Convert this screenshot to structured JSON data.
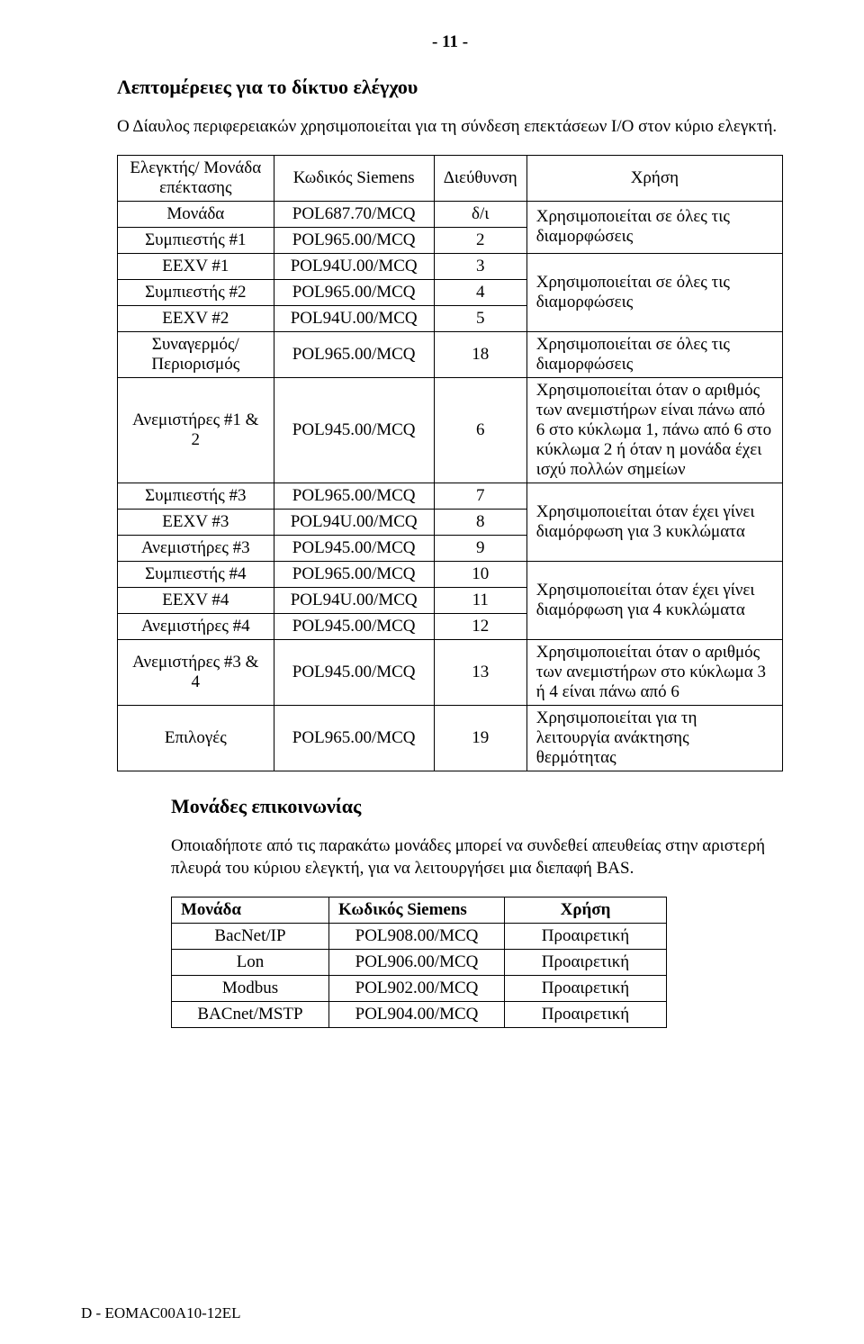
{
  "pageNumber": "- 11 -",
  "section1": {
    "title": "Λεπτομέρειες για το δίκτυο ελέγχου",
    "intro": "Ο Δίαυλος περιφερειακών χρησιμοποιείται για τη σύνδεση επεκτάσεων I/O στον κύριο ελεγκτή."
  },
  "table1": {
    "headers": {
      "c1": "Ελεγκτής/ Μονάδα επέκτασης",
      "c2": "Κωδικός Siemens",
      "c3": "Διεύθυνση",
      "c4": "Χρήση"
    },
    "r1": {
      "a": "Μονάδα",
      "b": "POL687.70/MCQ",
      "c": "δ/ι"
    },
    "group1_usage": "Χρησιμοποιείται σε όλες τις διαμορφώσεις",
    "r2": {
      "a": "Συμπιεστής #1",
      "b": "POL965.00/MCQ",
      "c": "2"
    },
    "r3": {
      "a": "EEXV #1",
      "b": "POL94U.00/MCQ",
      "c": "3"
    },
    "group2_usage": "Χρησιμοποιείται σε όλες τις διαμορφώσεις",
    "r4": {
      "a": "Συμπιεστής #2",
      "b": "POL965.00/MCQ",
      "c": "4"
    },
    "r5": {
      "a": "EEXV #2",
      "b": "POL94U.00/MCQ",
      "c": "5"
    },
    "r6": {
      "a": "Συναγερμός/ Περιορισμός",
      "b": "POL965.00/MCQ",
      "c": "18",
      "d": "Χρησιμοποιείται σε όλες τις διαμορφώσεις"
    },
    "r7": {
      "a": "Ανεμιστήρες #1 & 2",
      "b": "POL945.00/MCQ",
      "c": "6",
      "d": "Χρησιμοποιείται όταν ο αριθμός των ανεμιστήρων είναι πάνω από 6 στο κύκλωμα 1, πάνω από 6 στο κύκλωμα 2 ή όταν η μονάδα έχει ισχύ πολλών σημείων"
    },
    "r8": {
      "a": "Συμπιεστής #3",
      "b": "POL965.00/MCQ",
      "c": "7"
    },
    "group3_usage": "Χρησιμοποιείται όταν έχει γίνει διαμόρφωση για 3 κυκλώματα",
    "r9": {
      "a": "EEXV #3",
      "b": "POL94U.00/MCQ",
      "c": "8"
    },
    "r10": {
      "a": "Ανεμιστήρες #3",
      "b": "POL945.00/MCQ",
      "c": "9"
    },
    "r11": {
      "a": "Συμπιεστής #4",
      "b": "POL965.00/MCQ",
      "c": "10"
    },
    "group4_usage": "Χρησιμοποιείται όταν έχει γίνει διαμόρφωση για 4 κυκλώματα",
    "r12": {
      "a": "EEXV #4",
      "b": "POL94U.00/MCQ",
      "c": "11"
    },
    "r13": {
      "a": "Ανεμιστήρες #4",
      "b": "POL945.00/MCQ",
      "c": "12"
    },
    "r14": {
      "a": "Ανεμιστήρες #3 & 4",
      "b": "POL945.00/MCQ",
      "c": "13",
      "d": "Χρησιμοποιείται όταν ο αριθμός των ανεμιστήρων στο κύκλωμα 3 ή 4 είναι πάνω από 6"
    },
    "r15": {
      "a": "Επιλογές",
      "b": "POL965.00/MCQ",
      "c": "19",
      "d": "Χρησιμοποιείται για τη λειτουργία ανάκτησης θερμότητας"
    }
  },
  "section2": {
    "title": "Μονάδες επικοινωνίας",
    "intro": "Οποιαδήποτε από τις παρακάτω μονάδες μπορεί να συνδεθεί απευθείας στην αριστερή πλευρά του κύριου ελεγκτή, για να λειτουργήσει μια διεπαφή BAS."
  },
  "table2": {
    "headers": {
      "c1": "Μονάδα",
      "c2": "Κωδικός Siemens",
      "c3": "Χρήση"
    },
    "rows": [
      {
        "a": "BacNet/IP",
        "b": "POL908.00/MCQ",
        "c": "Προαιρετική"
      },
      {
        "a": "Lon",
        "b": "POL906.00/MCQ",
        "c": "Προαιρετική"
      },
      {
        "a": "Modbus",
        "b": "POL902.00/MCQ",
        "c": "Προαιρετική"
      },
      {
        "a": "BACnet/MSTP",
        "b": "POL904.00/MCQ",
        "c": "Προαιρετική"
      }
    ]
  },
  "footer": "D - EOMAC00A10-12EL"
}
